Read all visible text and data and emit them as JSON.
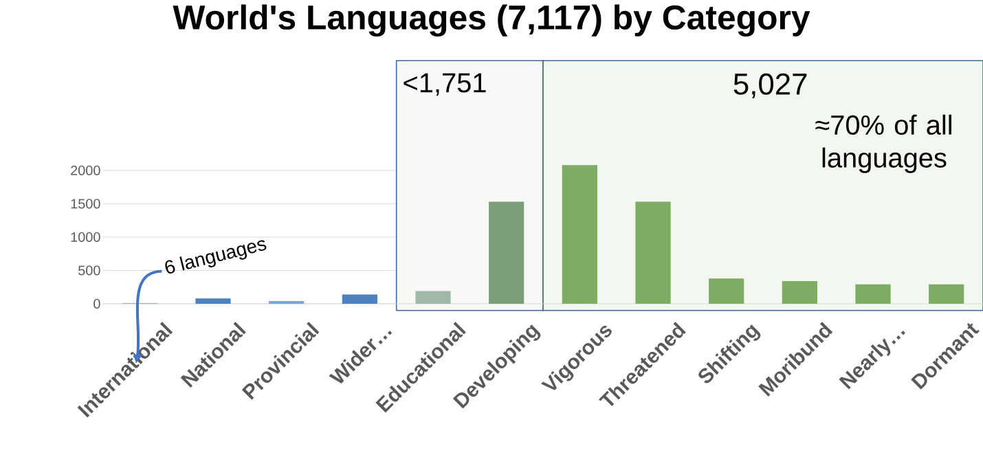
{
  "chart_data": {
    "type": "bar",
    "title": "World's Languages (7,117) by Category",
    "categories": [
      "International",
      "National",
      "Provincial",
      "Wider…",
      "Educational",
      "Developing",
      "Vigorous",
      "Threatened",
      "Shifting",
      "Moribund",
      "Nearly…",
      "Dormant"
    ],
    "values": [
      6,
      80,
      40,
      140,
      190,
      1530,
      2080,
      1530,
      380,
      340,
      290,
      290
    ],
    "colors": [
      "#4f81bd",
      "#4f81bd",
      "#7ea6d3",
      "#4f81bd",
      "#9fb8a8",
      "#7a9f78",
      "#7fac65",
      "#7fac65",
      "#7fac65",
      "#7fac65",
      "#7fac65",
      "#7fac65"
    ],
    "ylim": [
      0,
      2100
    ],
    "yticks": [
      0,
      500,
      1000,
      1500,
      2000
    ],
    "grid": "y",
    "bands": [
      {
        "axis": "x",
        "from": "Educational",
        "to": "Developing",
        "label": "<1,751",
        "color": "#f8f8f6"
      },
      {
        "axis": "x",
        "from": "Vigorous",
        "to": "Dormant",
        "label": "5,027",
        "color": "#f2f7ef"
      }
    ],
    "annotations": [
      "≈70% of all languages",
      {
        "text": "6 languages",
        "x": "International",
        "y": 6
      }
    ]
  }
}
